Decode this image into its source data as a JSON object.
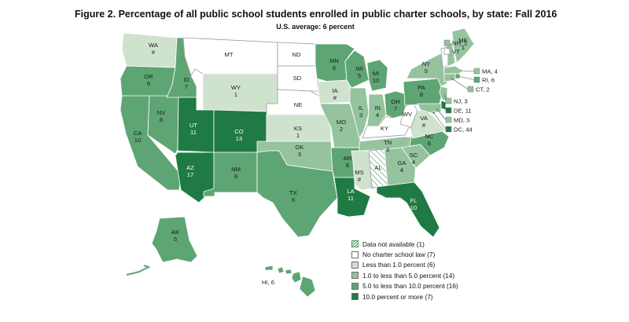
{
  "title": "Figure 2. Percentage of all public school students enrolled in public charter schools, by state: Fall 2016",
  "subtitle": "U.S. average: 6 percent",
  "colors": {
    "na": "#ffffff",
    "none": "#ffffff",
    "lt1": "#cfe2ce",
    "c1to5": "#94c39e",
    "c5to10": "#5ea574",
    "c10plus": "#207a44",
    "border": "#ffffff",
    "na_hatch": "#4f9a6d"
  },
  "legend": [
    {
      "key": "na",
      "label": "Data not available (1)"
    },
    {
      "key": "none",
      "label": "No charter school law (7)"
    },
    {
      "key": "lt1",
      "label": "Less than 1.0 percent (6)"
    },
    {
      "key": "c1to5",
      "label": "1.0 to less than 5.0 percent (14)"
    },
    {
      "key": "c5to10",
      "label": "5.0 to less than 10.0 percent (16)"
    },
    {
      "key": "c10plus",
      "label": "10.0 percent or more (7)"
    }
  ],
  "states": [
    {
      "abbr": "WA",
      "value": "#",
      "cat": "lt1"
    },
    {
      "abbr": "OR",
      "value": "6",
      "cat": "c5to10"
    },
    {
      "abbr": "CA",
      "value": "10",
      "cat": "c5to10"
    },
    {
      "abbr": "NV",
      "value": "8",
      "cat": "c5to10"
    },
    {
      "abbr": "ID",
      "value": "7",
      "cat": "c5to10"
    },
    {
      "abbr": "MT",
      "value": "",
      "cat": "none"
    },
    {
      "abbr": "WY",
      "value": "1",
      "cat": "lt1"
    },
    {
      "abbr": "UT",
      "value": "11",
      "cat": "c10plus"
    },
    {
      "abbr": "AZ",
      "value": "17",
      "cat": "c10plus"
    },
    {
      "abbr": "CO",
      "value": "13",
      "cat": "c10plus"
    },
    {
      "abbr": "NM",
      "value": "8",
      "cat": "c5to10"
    },
    {
      "abbr": "ND",
      "value": "",
      "cat": "none"
    },
    {
      "abbr": "SD",
      "value": "",
      "cat": "none"
    },
    {
      "abbr": "NE",
      "value": "",
      "cat": "none"
    },
    {
      "abbr": "KS",
      "value": "1",
      "cat": "lt1"
    },
    {
      "abbr": "OK",
      "value": "3",
      "cat": "c1to5"
    },
    {
      "abbr": "TX",
      "value": "6",
      "cat": "c5to10"
    },
    {
      "abbr": "MN",
      "value": "6",
      "cat": "c5to10"
    },
    {
      "abbr": "IA",
      "value": "#",
      "cat": "lt1"
    },
    {
      "abbr": "MO",
      "value": "2",
      "cat": "c1to5"
    },
    {
      "abbr": "AR",
      "value": "6",
      "cat": "c5to10"
    },
    {
      "abbr": "LA",
      "value": "11",
      "cat": "c10plus"
    },
    {
      "abbr": "WI",
      "value": "5",
      "cat": "c5to10"
    },
    {
      "abbr": "IL",
      "value": "3",
      "cat": "c1to5"
    },
    {
      "abbr": "MI",
      "value": "10",
      "cat": "c5to10"
    },
    {
      "abbr": "IN",
      "value": "4",
      "cat": "c1to5"
    },
    {
      "abbr": "OH",
      "value": "7",
      "cat": "c5to10"
    },
    {
      "abbr": "KY",
      "value": "",
      "cat": "none"
    },
    {
      "abbr": "TN",
      "value": "3",
      "cat": "c1to5"
    },
    {
      "abbr": "MS",
      "value": "#",
      "cat": "lt1"
    },
    {
      "abbr": "AL",
      "value": "",
      "cat": "na"
    },
    {
      "abbr": "GA",
      "value": "4",
      "cat": "c1to5"
    },
    {
      "abbr": "FL",
      "value": "10",
      "cat": "c10plus"
    },
    {
      "abbr": "SC",
      "value": "4",
      "cat": "c1to5"
    },
    {
      "abbr": "NC",
      "value": "6",
      "cat": "c5to10"
    },
    {
      "abbr": "VA",
      "value": "#",
      "cat": "lt1"
    },
    {
      "abbr": "WV",
      "value": "",
      "cat": "none"
    },
    {
      "abbr": "PA",
      "value": "8",
      "cat": "c5to10"
    },
    {
      "abbr": "NY",
      "value": "5",
      "cat": "c1to5"
    },
    {
      "abbr": "VT",
      "value": "",
      "cat": "none"
    },
    {
      "abbr": "NH",
      "value": "2",
      "cat": "c1to5"
    },
    {
      "abbr": "ME",
      "value": "1",
      "cat": "c1to5"
    },
    {
      "abbr": "MA",
      "value": "4",
      "cat": "c1to5"
    },
    {
      "abbr": "RI",
      "value": "6",
      "cat": "c5to10"
    },
    {
      "abbr": "CT",
      "value": "2",
      "cat": "c1to5"
    },
    {
      "abbr": "NJ",
      "value": "3",
      "cat": "c1to5"
    },
    {
      "abbr": "DE",
      "value": "11",
      "cat": "c10plus"
    },
    {
      "abbr": "MD",
      "value": "3",
      "cat": "c1to5"
    },
    {
      "abbr": "DC",
      "value": "44",
      "cat": "c10plus"
    },
    {
      "abbr": "AK",
      "value": "5",
      "cat": "c5to10"
    },
    {
      "abbr": "HI",
      "value": "6",
      "cat": "c5to10"
    }
  ],
  "side_labels": {
    "NH": "NH, 2",
    "VT": "VT",
    "MA": "MA, 4",
    "RI": "RI, 6",
    "CT": "CT, 2",
    "NJ": "NJ, 3",
    "DE": "DE, 11",
    "MD": "MD, 3",
    "DC": "DC, 44",
    "HI": "HI, 6"
  }
}
